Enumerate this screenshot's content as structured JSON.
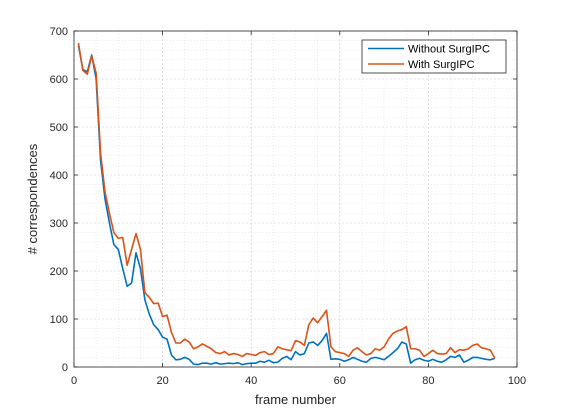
{
  "chart_data": {
    "type": "line",
    "title": "",
    "xlabel": "frame number",
    "ylabel": "# correspondences",
    "xlim": [
      0,
      100
    ],
    "ylim": [
      0,
      700
    ],
    "xticks": [
      0,
      20,
      40,
      60,
      80,
      100
    ],
    "yticks": [
      0,
      100,
      200,
      300,
      400,
      500,
      600,
      700
    ],
    "grid": "major+minor dotted",
    "legend_position": "top-right",
    "x": [
      1,
      2,
      3,
      4,
      5,
      6,
      7,
      8,
      9,
      10,
      11,
      12,
      13,
      14,
      15,
      16,
      17,
      18,
      19,
      20,
      21,
      22,
      23,
      24,
      25,
      26,
      27,
      28,
      29,
      30,
      31,
      32,
      33,
      34,
      35,
      36,
      37,
      38,
      39,
      40,
      41,
      42,
      43,
      44,
      45,
      46,
      47,
      48,
      49,
      50,
      51,
      52,
      53,
      54,
      55,
      56,
      57,
      58,
      59,
      60,
      61,
      62,
      63,
      64,
      65,
      66,
      67,
      68,
      69,
      70,
      71,
      72,
      73,
      74,
      75,
      76,
      77,
      78,
      79,
      80,
      81,
      82,
      83,
      84,
      85,
      86,
      87,
      88,
      89,
      90,
      91,
      92,
      93,
      94,
      95
    ],
    "series": [
      {
        "name": "Without SurgIPC",
        "color": "#0072BD",
        "values": [
          670,
          620,
          615,
          650,
          600,
          430,
          350,
          300,
          255,
          245,
          205,
          168,
          175,
          238,
          205,
          140,
          110,
          88,
          78,
          62,
          58,
          25,
          15,
          16,
          20,
          16,
          6,
          5,
          8,
          8,
          6,
          9,
          6,
          7,
          8,
          7,
          9,
          5,
          7,
          8,
          8,
          12,
          10,
          14,
          9,
          10,
          18,
          22,
          15,
          32,
          25,
          28,
          50,
          52,
          45,
          55,
          70,
          16,
          17,
          16,
          12,
          15,
          20,
          16,
          12,
          10,
          18,
          20,
          18,
          15,
          22,
          30,
          38,
          52,
          48,
          8,
          15,
          18,
          14,
          12,
          16,
          12,
          10,
          15,
          22,
          20,
          25,
          10,
          14,
          20,
          20,
          18,
          16,
          15,
          18
        ]
      },
      {
        "name": "With SurgIPC",
        "color": "#D95319",
        "values": [
          675,
          618,
          610,
          648,
          612,
          445,
          365,
          320,
          280,
          268,
          270,
          212,
          245,
          278,
          245,
          155,
          145,
          132,
          133,
          105,
          108,
          72,
          50,
          50,
          58,
          52,
          38,
          42,
          48,
          43,
          38,
          30,
          28,
          32,
          25,
          28,
          26,
          22,
          28,
          26,
          24,
          30,
          32,
          26,
          28,
          42,
          38,
          36,
          34,
          55,
          52,
          45,
          88,
          102,
          92,
          105,
          118,
          42,
          32,
          30,
          28,
          22,
          35,
          40,
          32,
          25,
          28,
          38,
          35,
          42,
          58,
          70,
          75,
          78,
          84,
          38,
          38,
          35,
          22,
          28,
          35,
          28,
          27,
          28,
          40,
          30,
          36,
          35,
          38,
          45,
          48,
          40,
          38,
          35,
          18
        ]
      }
    ]
  }
}
